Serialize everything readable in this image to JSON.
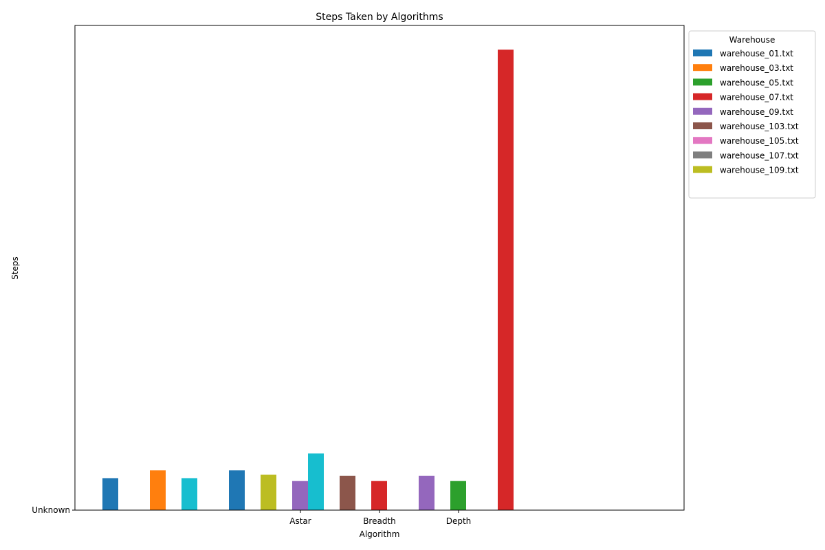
{
  "chart_data": {
    "type": "bar",
    "title": "Steps Taken by Algorithms",
    "xlabel": "Algorithm",
    "ylabel": "Steps",
    "categories": [
      "Astar",
      "Breadth",
      "Depth"
    ],
    "yticks": [
      "Unknown"
    ],
    "ylim": [
      0,
      1
    ],
    "grid": false,
    "legend": {
      "title": "Warehouse",
      "placement": "outside-top-right",
      "entries": [
        {
          "name": "warehouse_01.txt",
          "color": "#1f77b4"
        },
        {
          "name": "warehouse_03.txt",
          "color": "#ff7f0e"
        },
        {
          "name": "warehouse_05.txt",
          "color": "#2ca02c"
        },
        {
          "name": "warehouse_07.txt",
          "color": "#d62728"
        },
        {
          "name": "warehouse_09.txt",
          "color": "#9467bd"
        },
        {
          "name": "warehouse_103.txt",
          "color": "#8c564b"
        },
        {
          "name": "warehouse_105.txt",
          "color": "#e377c2"
        },
        {
          "name": "warehouse_107.txt",
          "color": "#7f7f7f"
        },
        {
          "name": "warehouse_109.txt",
          "color": "#bcbd22"
        }
      ]
    },
    "bars": [
      {
        "slot": 1,
        "color": "#1f77b4",
        "value": 0.066
      },
      {
        "slot": 4,
        "color": "#ff7f0e",
        "value": 0.082
      },
      {
        "slot": 6,
        "color": "#17becf",
        "value": 0.066
      },
      {
        "slot": 9,
        "color": "#1f77b4",
        "value": 0.082
      },
      {
        "slot": 11,
        "color": "#bcbd22",
        "value": 0.073
      },
      {
        "slot": 13,
        "color": "#9467bd",
        "value": 0.06
      },
      {
        "slot": 14,
        "color": "#17becf",
        "value": 0.117
      },
      {
        "slot": 16,
        "color": "#8c564b",
        "value": 0.071
      },
      {
        "slot": 18,
        "color": "#d62728",
        "value": 0.06
      },
      {
        "slot": 21,
        "color": "#9467bd",
        "value": 0.071
      },
      {
        "slot": 23,
        "color": "#2ca02c",
        "value": 0.06
      },
      {
        "slot": 26,
        "color": "#d62728",
        "value": 0.95
      }
    ]
  }
}
